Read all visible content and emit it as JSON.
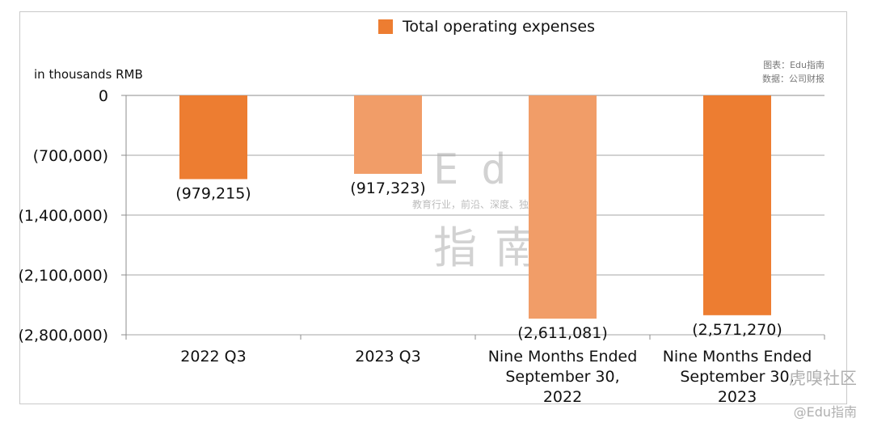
{
  "legend": {
    "label": "Total operating expenses",
    "color": "#ed7d31"
  },
  "unit_label": "in thousands RMB",
  "source": {
    "line1": "图表：Edu指南",
    "line2": "数据：公司财报"
  },
  "watermark": {
    "logo": "Edu",
    "slogan": "教育行业，前沿、深度、独家",
    "name_cn": "指南",
    "corner": "虎嗅社区",
    "corner_sub": "@Edu指南"
  },
  "chart_data": {
    "type": "bar",
    "categories": [
      [
        "2022 Q3"
      ],
      [
        "2023 Q3"
      ],
      [
        "Nine Months Ended",
        "September 30,",
        "2022"
      ],
      [
        "Nine Months Ended",
        "September 30,",
        "2023"
      ]
    ],
    "series": [
      {
        "name": "Total operating expenses",
        "values": [
          -979215,
          -917323,
          -2611081,
          -2571270
        ],
        "labels": [
          "(979,215)",
          "(917,323)",
          "(2,611,081)",
          "(2,571,270)"
        ],
        "colors": [
          "#ed7d31",
          "#f19d68",
          "#f19d68",
          "#ed7d31"
        ]
      }
    ],
    "y_ticks": [
      {
        "value": 0,
        "label": "0"
      },
      {
        "value": -700000,
        "label": "(700,000)"
      },
      {
        "value": -1400000,
        "label": "(1,400,000)"
      },
      {
        "value": -2100000,
        "label": "(2,100,000)"
      },
      {
        "value": -2800000,
        "label": "(2,800,000)"
      }
    ],
    "ylim": [
      -2800000,
      0
    ],
    "ylabel": "in thousands RMB",
    "grid": true,
    "legend_position": "top-center"
  }
}
